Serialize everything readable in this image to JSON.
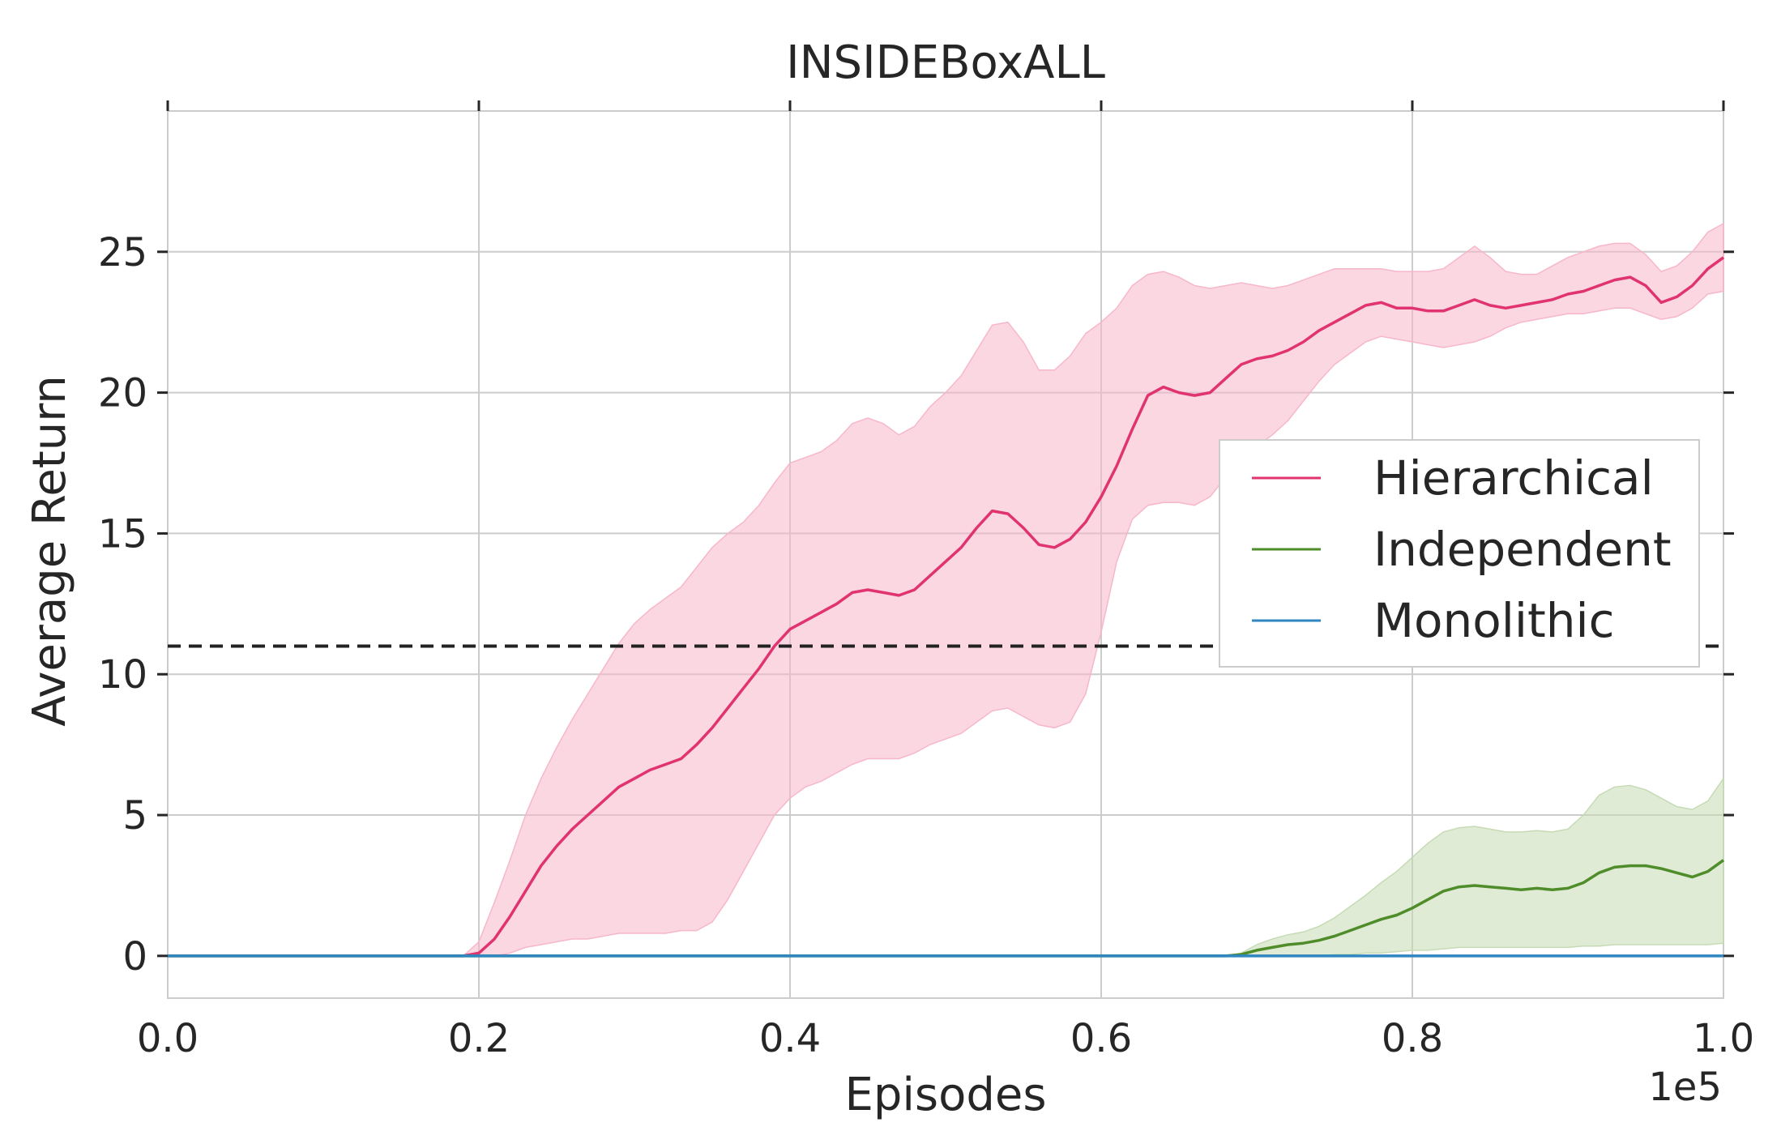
{
  "chart_data": {
    "type": "line",
    "title": "INSIDEBoxALL",
    "xlabel": "Episodes",
    "ylabel": "Average Return",
    "x_offset_label": "1e5",
    "xlim": [
      0.0,
      1.0
    ],
    "ylim": [
      -1.5,
      30
    ],
    "x_ticks": [
      0.0,
      0.2,
      0.4,
      0.6,
      0.8,
      1.0
    ],
    "x_tick_labels": [
      "0.0",
      "0.2",
      "0.4",
      "0.6",
      "0.8",
      "1.0"
    ],
    "y_ticks": [
      0,
      5,
      10,
      15,
      20,
      25
    ],
    "y_tick_labels": [
      "0",
      "5",
      "10",
      "15",
      "20",
      "25"
    ],
    "grid": true,
    "legend_position": "center-right",
    "reference_line": {
      "y": 11,
      "style": "dashed",
      "color": "#222222"
    },
    "series": [
      {
        "name": "Hierarchical",
        "color": "#e0336f",
        "fill_color": "#f7b7cb",
        "x": [
          0.0,
          0.19,
          0.2,
          0.21,
          0.22,
          0.23,
          0.24,
          0.25,
          0.26,
          0.27,
          0.28,
          0.29,
          0.3,
          0.31,
          0.32,
          0.33,
          0.34,
          0.35,
          0.36,
          0.37,
          0.38,
          0.39,
          0.4,
          0.41,
          0.42,
          0.43,
          0.44,
          0.45,
          0.46,
          0.47,
          0.48,
          0.49,
          0.5,
          0.51,
          0.52,
          0.53,
          0.54,
          0.55,
          0.56,
          0.57,
          0.58,
          0.59,
          0.6,
          0.61,
          0.62,
          0.63,
          0.64,
          0.65,
          0.66,
          0.67,
          0.68,
          0.69,
          0.7,
          0.71,
          0.72,
          0.73,
          0.74,
          0.75,
          0.76,
          0.77,
          0.78,
          0.79,
          0.8,
          0.81,
          0.82,
          0.83,
          0.84,
          0.85,
          0.86,
          0.87,
          0.88,
          0.89,
          0.9,
          0.91,
          0.92,
          0.93,
          0.94,
          0.95,
          0.96,
          0.97,
          0.98,
          0.99,
          1.0
        ],
        "y": [
          0.0,
          0.0,
          0.1,
          0.6,
          1.4,
          2.3,
          3.2,
          3.9,
          4.5,
          5.0,
          5.5,
          6.0,
          6.3,
          6.6,
          6.8,
          7.0,
          7.5,
          8.1,
          8.8,
          9.5,
          10.2,
          11.0,
          11.6,
          11.9,
          12.2,
          12.5,
          12.9,
          13.0,
          12.9,
          12.8,
          13.0,
          13.5,
          14.0,
          14.5,
          15.2,
          15.8,
          15.7,
          15.2,
          14.6,
          14.5,
          14.8,
          15.4,
          16.3,
          17.4,
          18.7,
          19.9,
          20.2,
          20.0,
          19.9,
          20.0,
          20.5,
          21.0,
          21.2,
          21.3,
          21.5,
          21.8,
          22.2,
          22.5,
          22.8,
          23.1,
          23.2,
          23.0,
          23.0,
          22.9,
          22.9,
          23.1,
          23.3,
          23.1,
          23.0,
          23.1,
          23.2,
          23.3,
          23.5,
          23.6,
          23.8,
          24.0,
          24.1,
          23.8,
          23.2,
          23.4,
          23.8,
          24.4,
          24.8
        ],
        "lower": [
          0.0,
          0.0,
          0.0,
          0.0,
          0.1,
          0.3,
          0.4,
          0.5,
          0.6,
          0.6,
          0.7,
          0.8,
          0.8,
          0.8,
          0.8,
          0.9,
          0.9,
          1.2,
          2.0,
          3.0,
          4.0,
          5.0,
          5.6,
          6.0,
          6.2,
          6.5,
          6.8,
          7.0,
          7.0,
          7.0,
          7.2,
          7.5,
          7.7,
          7.9,
          8.3,
          8.7,
          8.8,
          8.5,
          8.2,
          8.1,
          8.3,
          9.3,
          11.5,
          14.0,
          15.5,
          16.0,
          16.1,
          16.1,
          16.0,
          16.3,
          17.0,
          17.6,
          18.1,
          18.5,
          19.0,
          19.7,
          20.4,
          21.0,
          21.4,
          21.8,
          22.0,
          21.9,
          21.8,
          21.7,
          21.6,
          21.7,
          21.8,
          22.0,
          22.3,
          22.5,
          22.6,
          22.7,
          22.8,
          22.8,
          22.9,
          23.0,
          23.0,
          22.8,
          22.6,
          22.7,
          23.0,
          23.5,
          23.6
        ],
        "upper": [
          0.0,
          0.0,
          0.5,
          1.9,
          3.4,
          5.0,
          6.3,
          7.4,
          8.4,
          9.3,
          10.2,
          11.1,
          11.8,
          12.3,
          12.7,
          13.1,
          13.8,
          14.5,
          15.0,
          15.4,
          16.0,
          16.8,
          17.5,
          17.7,
          17.9,
          18.3,
          18.9,
          19.1,
          18.9,
          18.5,
          18.8,
          19.5,
          20.0,
          20.6,
          21.5,
          22.4,
          22.5,
          21.8,
          20.8,
          20.8,
          21.3,
          22.1,
          22.5,
          23.0,
          23.8,
          24.2,
          24.3,
          24.1,
          23.8,
          23.7,
          23.8,
          23.9,
          23.8,
          23.7,
          23.8,
          24.0,
          24.2,
          24.4,
          24.4,
          24.4,
          24.4,
          24.3,
          24.3,
          24.3,
          24.4,
          24.8,
          25.2,
          24.8,
          24.3,
          24.2,
          24.2,
          24.5,
          24.8,
          25.0,
          25.2,
          25.3,
          25.3,
          24.9,
          24.3,
          24.5,
          25.0,
          25.7,
          26.0
        ]
      },
      {
        "name": "Independent",
        "color": "#4f8c2a",
        "fill_color": "#c6dbb4",
        "x": [
          0.0,
          0.68,
          0.69,
          0.7,
          0.71,
          0.72,
          0.73,
          0.74,
          0.75,
          0.76,
          0.77,
          0.78,
          0.79,
          0.8,
          0.81,
          0.82,
          0.83,
          0.84,
          0.85,
          0.86,
          0.87,
          0.88,
          0.89,
          0.9,
          0.91,
          0.92,
          0.93,
          0.94,
          0.95,
          0.96,
          0.97,
          0.98,
          0.99,
          1.0
        ],
        "y": [
          0.0,
          0.0,
          0.05,
          0.2,
          0.3,
          0.4,
          0.45,
          0.55,
          0.7,
          0.9,
          1.1,
          1.3,
          1.45,
          1.7,
          2.0,
          2.3,
          2.45,
          2.5,
          2.45,
          2.4,
          2.35,
          2.4,
          2.35,
          2.4,
          2.6,
          2.95,
          3.15,
          3.2,
          3.2,
          3.1,
          2.95,
          2.8,
          3.0,
          3.4
        ],
        "lower": [
          0.0,
          0.0,
          0.0,
          0.0,
          0.0,
          0.0,
          0.0,
          0.0,
          0.05,
          0.05,
          0.1,
          0.1,
          0.15,
          0.2,
          0.2,
          0.25,
          0.3,
          0.3,
          0.3,
          0.3,
          0.3,
          0.3,
          0.3,
          0.3,
          0.35,
          0.35,
          0.4,
          0.4,
          0.4,
          0.4,
          0.4,
          0.4,
          0.4,
          0.45
        ],
        "upper": [
          0.0,
          0.0,
          0.1,
          0.4,
          0.6,
          0.75,
          0.85,
          1.05,
          1.35,
          1.75,
          2.15,
          2.6,
          3.0,
          3.5,
          4.0,
          4.4,
          4.55,
          4.6,
          4.5,
          4.4,
          4.4,
          4.45,
          4.4,
          4.5,
          5.0,
          5.7,
          6.0,
          6.05,
          5.9,
          5.6,
          5.3,
          5.2,
          5.5,
          6.3
        ]
      },
      {
        "name": "Monolithic",
        "color": "#2f86c1",
        "x": [
          0.0,
          1.0
        ],
        "y": [
          0.0,
          0.0
        ]
      }
    ]
  }
}
